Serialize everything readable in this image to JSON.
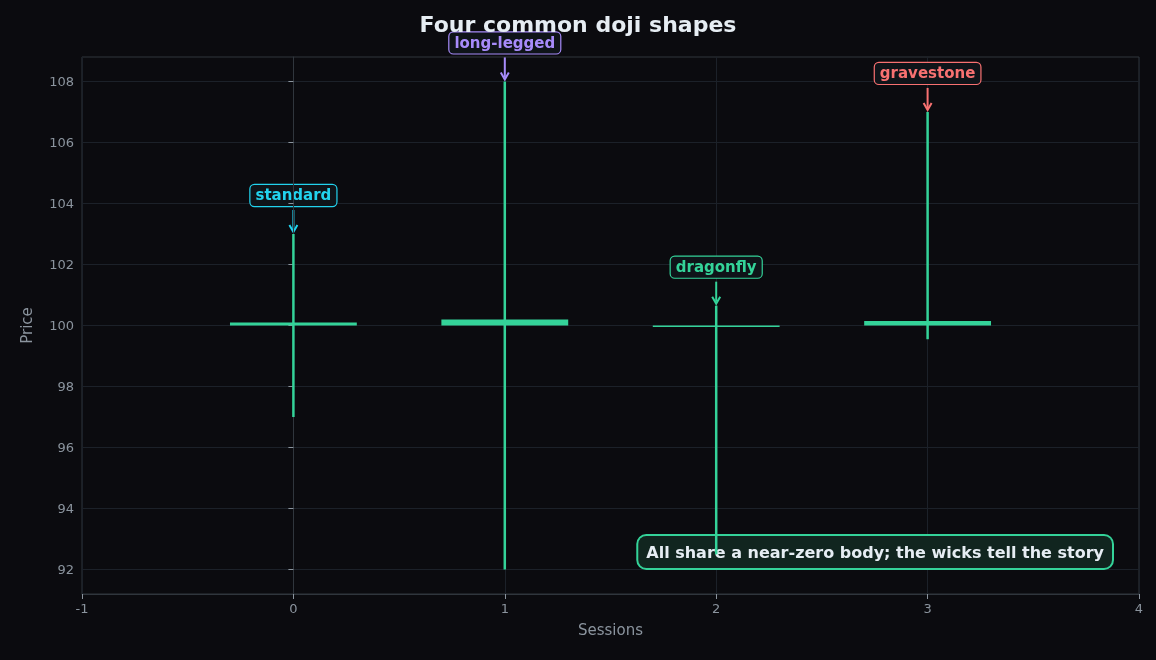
{
  "chart_data": {
    "type": "candlestick",
    "title": "Four common doji shapes",
    "xlabel": "Sessions",
    "ylabel": "Price",
    "x": [
      0,
      1,
      2,
      3
    ],
    "ohlc": [
      [
        100.0,
        103.0,
        97.0,
        100.1
      ],
      [
        100.0,
        108.0,
        92.0,
        100.2
      ],
      [
        100.0,
        100.65,
        92.5,
        100.0
      ],
      [
        100.0,
        107.0,
        99.55,
        100.15
      ]
    ],
    "colors": [
      "#34d399",
      "#34d399",
      "#34d399",
      "#34d399"
    ],
    "xlim": [
      -1,
      4
    ],
    "xticks": [
      -1,
      0,
      1,
      2,
      3,
      4
    ],
    "ylim": [
      91.2,
      108.8
    ],
    "yticks": [
      92,
      94,
      96,
      98,
      100,
      102,
      104,
      106,
      108
    ],
    "grid": true,
    "annotations": [
      {
        "text": "standard",
        "x": 0,
        "y": 103.0
      },
      {
        "text": "long-legged",
        "x": 1,
        "y": 108.0
      },
      {
        "text": "dragonfly",
        "x": 2,
        "y": 100.65
      },
      {
        "text": "gravestone",
        "x": 3,
        "y": 107.0
      },
      "All share a near-zero body; the wicks tell the story"
    ]
  }
}
